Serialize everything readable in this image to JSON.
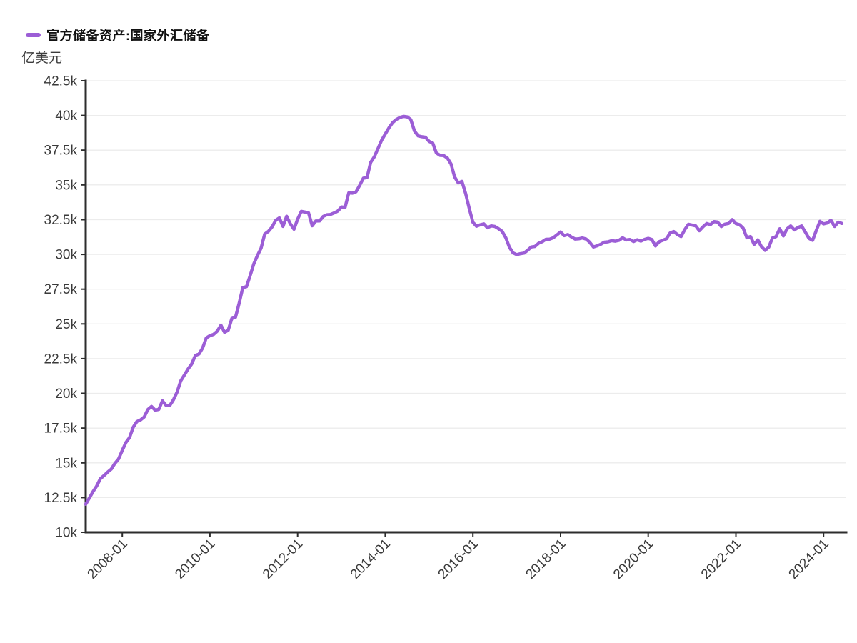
{
  "chart_data": {
    "type": "line",
    "title": "官方储备资产:国家外汇储备",
    "unit": "亿美元",
    "legend_position": "top-left",
    "grid": "horizontal-only",
    "ylim": [
      10000,
      42500
    ],
    "y_ticks": [
      10000,
      12500,
      15000,
      17500,
      20000,
      22500,
      25000,
      27500,
      30000,
      32500,
      35000,
      37500,
      40000,
      42500
    ],
    "y_tick_labels": [
      "10k",
      "12.5k",
      "15k",
      "17.5k",
      "20k",
      "22.5k",
      "25k",
      "27.5k",
      "30k",
      "32.5k",
      "35k",
      "37.5k",
      "40k",
      "42.5k"
    ],
    "x_tick_labels": [
      "2008-01",
      "2010-01",
      "2012-01",
      "2014-01",
      "2016-01",
      "2018-01",
      "2020-01",
      "2022-01",
      "2024-01"
    ],
    "colors": {
      "line": "#9c5ed6",
      "axis": "#2d2d2d",
      "grid": "#ececec",
      "tick_text": "#3a3a3a",
      "title_text": "#121212"
    },
    "series": [
      {
        "name": "官方储备资产:国家外汇储备",
        "color": "#9c5ed6",
        "x_start": "2007-03",
        "x_end": "2024-06",
        "x_step": "monthly",
        "point_count": 208,
        "values": [
          12020,
          12466,
          12927,
          13326,
          13857,
          14081,
          14336,
          14550,
          14970,
          15282,
          15898,
          16471,
          16822,
          17566,
          17970,
          18088,
          18300,
          18840,
          19056,
          18796,
          18847,
          19460,
          19135,
          19120,
          19537,
          20089,
          20895,
          21316,
          21746,
          22108,
          22726,
          22833,
          23266,
          23992,
          24152,
          24245,
          24471,
          24905,
          24395,
          24543,
          25389,
          25479,
          26483,
          27609,
          27679,
          28473,
          29316,
          29914,
          30447,
          31458,
          31660,
          31975,
          32452,
          32625,
          32017,
          32738,
          32209,
          31811,
          32536,
          33096,
          33050,
          32989,
          32061,
          32400,
          32404,
          32727,
          32851,
          32873,
          32979,
          33116,
          33410,
          33395,
          34426,
          34408,
          34510,
          34967,
          35480,
          35530,
          36627,
          37023,
          37617,
          38213,
          38660,
          39100,
          39480,
          39710,
          39850,
          39932,
          39900,
          39700,
          38877,
          38530,
          38470,
          38430,
          38134,
          38015,
          37300,
          37125,
          37111,
          36938,
          36513,
          35574,
          35141,
          35255,
          34383,
          33304,
          32309,
          32023,
          32126,
          32197,
          31917,
          32052,
          32011,
          31852,
          31664,
          31207,
          30516,
          30105,
          29982,
          30051,
          30091,
          30295,
          30536,
          30568,
          30807,
          30915,
          31085,
          31092,
          31193,
          31399,
          31615,
          31345,
          31428,
          31249,
          31106,
          31121,
          31179,
          31097,
          30870,
          30531,
          30617,
          30727,
          30880,
          30902,
          30988,
          30950,
          31010,
          31192,
          31037,
          31072,
          30924,
          31052,
          30956,
          31079,
          31155,
          31067,
          30606,
          30915,
          31017,
          31123,
          31544,
          31646,
          31426,
          31280,
          31785,
          32165,
          32107,
          32050,
          31700,
          31982,
          32218,
          32140,
          32359,
          32321,
          32006,
          32176,
          32224,
          32502,
          32216,
          32138,
          31880,
          31197,
          31278,
          30713,
          31041,
          30549,
          30290,
          30524,
          31175,
          31277,
          31845,
          31332,
          31839,
          32048,
          31765,
          31930,
          32043,
          31601,
          31151,
          31012,
          31718,
          32380,
          32193,
          32258,
          32457,
          32008,
          32320,
          32224
        ]
      }
    ]
  }
}
